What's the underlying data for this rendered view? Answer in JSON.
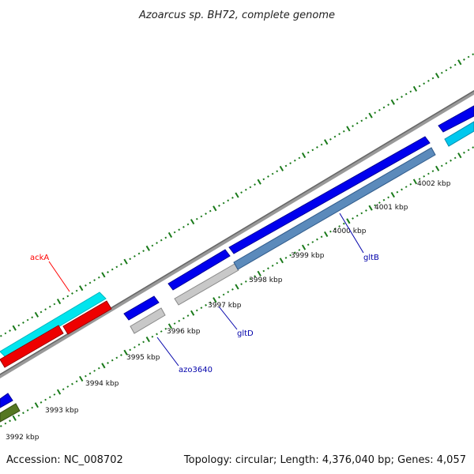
{
  "title": "Azoarcus sp. BH72, complete genome",
  "accession": "Accession: NC_008702",
  "summary": "Topology: circular; Length: 4,376,040 bp; Genes: 4,057",
  "ticks": [
    "3992 kbp",
    "3993 kbp",
    "3994 kbp",
    "3995 kbp",
    "3996 kbp",
    "3997 kbp",
    "3998 kbp",
    "3999 kbp",
    "4000 kbp",
    "4001 kbp",
    "4002 kbp"
  ],
  "genes": [
    {
      "name": "ackA",
      "color": "#ff0000"
    },
    {
      "name": "azo3640",
      "color": "#0000aa"
    },
    {
      "name": "gltD",
      "color": "#0000aa"
    },
    {
      "name": "gltB",
      "color": "#0000aa"
    }
  ],
  "feature_colors": {
    "backbone": "#888888",
    "forward_gene": "#0000ee",
    "cyan_gene": "#00e5ee",
    "red_gene": "#ee0000",
    "gray_gene": "#bbbbbb",
    "steel_gene": "#4f7fb0",
    "olive_gene": "#557722",
    "tick_mark": "#1a7a1a"
  }
}
